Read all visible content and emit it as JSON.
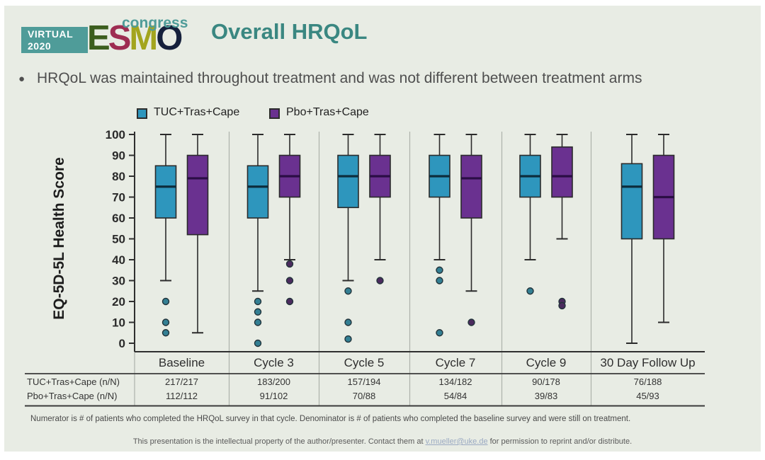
{
  "header": {
    "title": "Overall HRQoL",
    "logo": {
      "virtual_line1": "VIRTUAL",
      "virtual_line2": "2020",
      "esmo_letters": [
        "E",
        "S",
        "M",
        "O"
      ],
      "congress": "congress"
    }
  },
  "bullet": "HRQoL was maintained throughout treatment and was not different between treatment arms",
  "legend": [
    {
      "label": "TUC+Tras+Cape",
      "color": "#2e96bd"
    },
    {
      "label": "Pbo+Tras+Cape",
      "color": "#6a3190"
    }
  ],
  "chart_data": {
    "type": "boxplot",
    "title": "Overall HRQoL",
    "ylabel": "EQ-5D-5L Health Score",
    "xlabel": "",
    "ylim": [
      0,
      100
    ],
    "yticks": [
      0,
      10,
      20,
      30,
      40,
      50,
      60,
      70,
      80,
      90,
      100
    ],
    "grid": false,
    "legend_position": "top",
    "categories": [
      "Baseline",
      "Cycle 3",
      "Cycle 5",
      "Cycle 7",
      "Cycle 9",
      "30 Day Follow Up"
    ],
    "series": [
      {
        "name": "TUC+Tras+Cape",
        "color": "#2e96bd",
        "median_color": "#0d2d3d",
        "dot_color": "#337f93",
        "boxes": [
          {
            "low": 30,
            "q1": 60,
            "median": 75,
            "q3": 85,
            "high": 100,
            "outliers": [
              20,
              10,
              5
            ]
          },
          {
            "low": 25,
            "q1": 60,
            "median": 75,
            "q3": 85,
            "high": 100,
            "outliers": [
              20,
              15,
              10,
              0
            ]
          },
          {
            "low": 30,
            "q1": 65,
            "median": 80,
            "q3": 90,
            "high": 100,
            "outliers": [
              25,
              10,
              2
            ]
          },
          {
            "low": 40,
            "q1": 70,
            "median": 80,
            "q3": 90,
            "high": 100,
            "outliers": [
              35,
              30,
              5
            ]
          },
          {
            "low": 40,
            "q1": 70,
            "median": 80,
            "q3": 90,
            "high": 100,
            "outliers": [
              25
            ]
          },
          {
            "low": 0,
            "q1": 50,
            "median": 75,
            "q3": 86,
            "high": 100,
            "outliers": []
          }
        ]
      },
      {
        "name": "Pbo+Tras+Cape",
        "color": "#6a3190",
        "median_color": "#2b0e45",
        "dot_color": "#4b2b5e",
        "boxes": [
          {
            "low": 5,
            "q1": 52,
            "median": 79,
            "q3": 90,
            "high": 100,
            "outliers": []
          },
          {
            "low": 40,
            "q1": 70,
            "median": 80,
            "q3": 90,
            "high": 100,
            "outliers": [
              38,
              30,
              20
            ]
          },
          {
            "low": 40,
            "q1": 70,
            "median": 80,
            "q3": 90,
            "high": 100,
            "outliers": [
              30
            ]
          },
          {
            "low": 25,
            "q1": 60,
            "median": 79,
            "q3": 90,
            "high": 100,
            "outliers": [
              10
            ]
          },
          {
            "low": 50,
            "q1": 70,
            "median": 80,
            "q3": 94,
            "high": 100,
            "outliers": [
              20,
              18
            ]
          },
          {
            "low": 10,
            "q1": 50,
            "median": 70,
            "q3": 90,
            "high": 100,
            "outliers": []
          }
        ]
      }
    ]
  },
  "table": {
    "columns": [
      "Baseline",
      "Cycle 3",
      "Cycle 5",
      "Cycle 7",
      "Cycle 9",
      "30 Day Follow Up"
    ],
    "row_headers": [
      "TUC+Tras+Cape (n/N)",
      "Pbo+Tras+Cape (n/N)"
    ],
    "rows": [
      [
        "217/217",
        "183/200",
        "157/194",
        "134/182",
        "90/178",
        "76/188"
      ],
      [
        "112/112",
        "91/102",
        "70/88",
        "54/84",
        "39/83",
        "45/93"
      ]
    ]
  },
  "footnote": "Numerator is # of patients who completed the HRQoL survey in that cycle. Denominator is # of patients who completed the baseline survey and were still on treatment.",
  "disclaimer": {
    "prefix": "This presentation is the intellectual property of the author/presenter. Contact them at ",
    "email": "v.mueller@uke.de",
    "suffix": " for permission to reprint and/or distribute."
  },
  "colors": {
    "background": "#e8ece4",
    "title_teal": "#3a8781",
    "logo_teal": "#4f9c99",
    "axis": "#2f2f2f",
    "separator": "#adb2ab"
  }
}
